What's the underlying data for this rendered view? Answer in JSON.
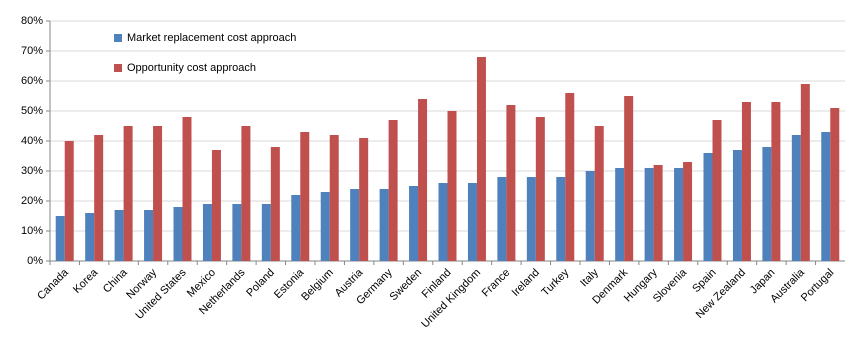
{
  "chart_data": {
    "type": "bar",
    "categories": [
      "Canada",
      "Korea",
      "China",
      "Norway",
      "United States",
      "Mexico",
      "Netherlands",
      "Poland",
      "Estonia",
      "Belgium",
      "Austria",
      "Germany",
      "Sweden",
      "Finland",
      "United Kingdom",
      "France",
      "Ireland",
      "Turkey",
      "Italy",
      "Denmark",
      "Hungary",
      "Slovenia",
      "Spain",
      "New Zealand",
      "Japan",
      "Australia",
      "Portugal"
    ],
    "series": [
      {
        "name": "Market replacement cost approach",
        "color": "#4f81bd",
        "values": [
          15,
          16,
          17,
          17,
          18,
          19,
          19,
          19,
          22,
          23,
          24,
          24,
          25,
          26,
          26,
          28,
          28,
          28,
          30,
          31,
          31,
          31,
          36,
          37,
          38,
          42,
          43
        ]
      },
      {
        "name": "Opportunity cost approach",
        "color": "#c0504d",
        "values": [
          40,
          42,
          45,
          45,
          48,
          37,
          45,
          38,
          43,
          42,
          41,
          47,
          54,
          50,
          68,
          52,
          48,
          56,
          45,
          55,
          32,
          33,
          47,
          53,
          53,
          59,
          51
        ]
      }
    ],
    "ylim": [
      0,
      80
    ],
    "yticks": [
      {
        "value": 0,
        "label": "0%"
      },
      {
        "value": 10,
        "label": "10%"
      },
      {
        "value": 20,
        "label": "20%"
      },
      {
        "value": 30,
        "label": "30%"
      },
      {
        "value": 40,
        "label": "40%"
      },
      {
        "value": 50,
        "label": "50%"
      },
      {
        "value": 60,
        "label": "60%"
      },
      {
        "value": 70,
        "label": "70%"
      },
      {
        "value": 80,
        "label": "80%"
      }
    ],
    "grid": true,
    "legend": "top-left"
  }
}
